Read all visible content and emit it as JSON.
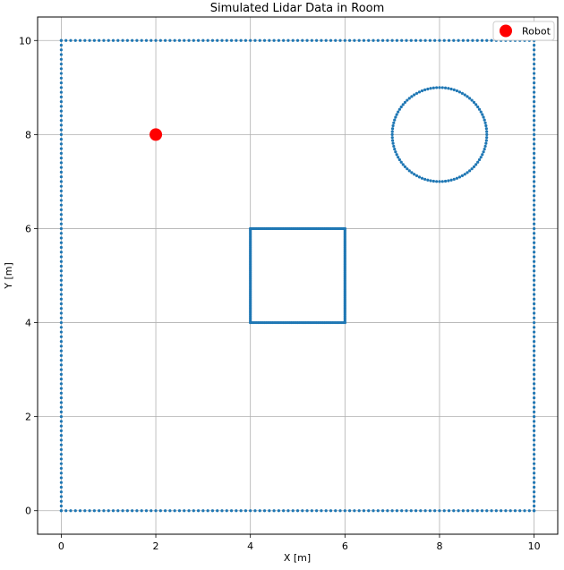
{
  "chart_data": {
    "type": "scatter",
    "title": "Simulated Lidar Data in Room",
    "xlabel": "X [m]",
    "ylabel": "Y [m]",
    "xlim": [
      -0.5,
      10.5
    ],
    "ylim": [
      -0.5,
      10.5
    ],
    "xticks": [
      0,
      2,
      4,
      6,
      8,
      10
    ],
    "yticks": [
      0,
      2,
      4,
      6,
      8,
      10
    ],
    "xtick_labels": [
      "0",
      "2",
      "4",
      "6",
      "8",
      "10"
    ],
    "ytick_labels": [
      "0",
      "2",
      "4",
      "6",
      "8",
      "10"
    ],
    "grid": true,
    "legend_position": "top-right",
    "legend": [
      "Robot"
    ],
    "lidar_color": "#1f77b4",
    "robot_color": "#ff0000",
    "robot": {
      "name": "Robot",
      "x": 2,
      "y": 8
    },
    "walls": {
      "x_min": 0,
      "x_max": 10,
      "y_min": 0,
      "y_max": 10
    },
    "box_obstacle": {
      "x_min": 4,
      "x_max": 6,
      "y_min": 4,
      "y_max": 6
    },
    "circle_obstacle": {
      "cx": 8,
      "cy": 8,
      "r": 1
    }
  }
}
